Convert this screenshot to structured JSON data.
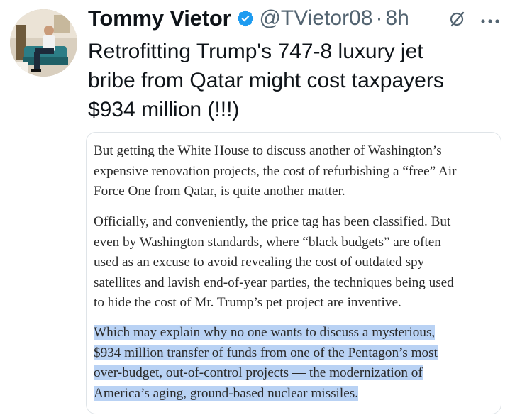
{
  "tweet": {
    "author_name": "Tommy Vietor",
    "handle": "@TVietor08",
    "separator": "·",
    "time": "8h",
    "text_lines": [
      "Retrofitting Trump's 747-8 luxury jet",
      "bribe from Qatar might cost taxpayers",
      "$934 million (!!!)"
    ]
  },
  "quoted_article": {
    "paragraph_1": [
      "But getting the White House to discuss another of Washington’s",
      "expensive renovation projects, the cost of refurbishing a “free” Air",
      "Force One from Qatar, is quite another matter."
    ],
    "paragraph_2": [
      "Officially, and conveniently, the price tag has been classified. But",
      "even by Washington standards, where “black budgets” are often",
      "used as an excuse to avoid revealing the cost of outdated spy",
      "satellites and lavish end-of-year parties, the techniques being used",
      "to hide the cost of Mr. Trump’s pet project are inventive."
    ],
    "paragraph_3_highlighted": [
      "Which may explain why no one wants to discuss a mysterious,",
      "$934 million transfer of funds from one of the Pentagon’s most",
      "over-budget, out-of-control projects — the modernization of",
      "America’s aging, ground-based nuclear missiles."
    ]
  },
  "icons": {
    "verified": "verified-badge-icon",
    "grok": "grok-icon",
    "more": "more-options-icon"
  },
  "colors": {
    "verified_blue": "#1d9bf0",
    "secondary_text": "#536471",
    "highlight": "#b9d2f4",
    "card_border": "#dfe4e8"
  }
}
